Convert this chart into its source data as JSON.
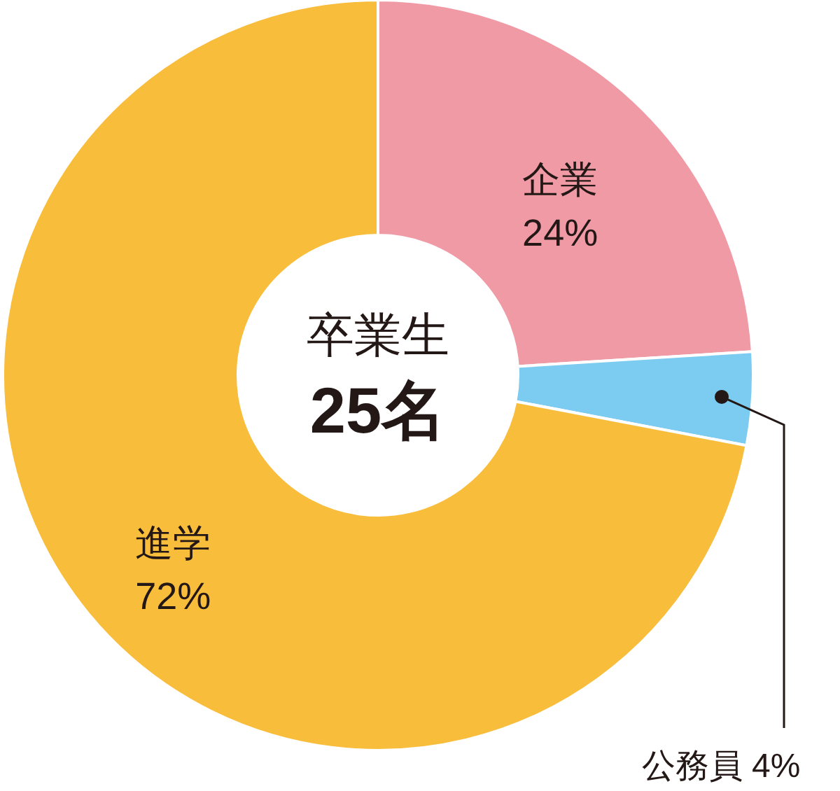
{
  "chart_data": {
    "type": "donut",
    "categories": [
      "企業",
      "公務員",
      "進学"
    ],
    "values": [
      24,
      4,
      72
    ],
    "colors": [
      "#f09aa6",
      "#7ccbf1",
      "#f9bd3c"
    ],
    "value_labels": [
      "24%",
      "4%",
      "72%"
    ],
    "annotations": [
      "卒業生",
      "25名"
    ]
  }
}
